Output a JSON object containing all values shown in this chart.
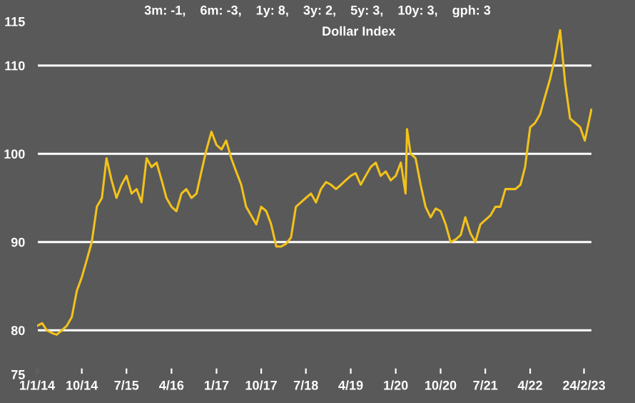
{
  "chart_data": {
    "type": "line",
    "title": "Dollar Index",
    "subtitle": "3m: -1,    6m: -3,    1y: 8,    3y: 2,    5y: 3,    10y: 3,    gph: 3",
    "x": [
      "2014-01",
      "2014-02",
      "2014-03",
      "2014-04",
      "2014-05",
      "2014-06",
      "2014-07",
      "2014-08",
      "2014-09",
      "2014-10",
      "2014-11",
      "2014-12",
      "2015-01",
      "2015-02",
      "2015-03",
      "2015-04",
      "2015-05",
      "2015-06",
      "2015-07",
      "2015-08",
      "2015-09",
      "2015-10",
      "2015-11",
      "2015-12",
      "2016-01",
      "2016-02",
      "2016-03",
      "2016-04",
      "2016-05",
      "2016-06",
      "2016-07",
      "2016-08",
      "2016-09",
      "2016-10",
      "2016-11",
      "2016-12",
      "2017-01",
      "2017-02",
      "2017-03",
      "2017-04",
      "2017-05",
      "2017-06",
      "2017-07",
      "2017-08",
      "2017-09",
      "2017-10",
      "2017-11",
      "2017-12",
      "2018-01",
      "2018-02",
      "2018-03",
      "2018-04",
      "2018-05",
      "2018-06",
      "2018-07",
      "2018-08",
      "2018-09",
      "2018-10",
      "2018-11",
      "2018-12",
      "2019-01",
      "2019-02",
      "2019-03",
      "2019-04",
      "2019-05",
      "2019-06",
      "2019-07",
      "2019-08",
      "2019-09",
      "2019-10",
      "2019-11",
      "2019-12",
      "2020-01",
      "2020-02",
      "2020-03",
      "2020-03-10",
      "2020-03-20",
      "2020-04",
      "2020-05",
      "2020-06",
      "2020-07",
      "2020-08",
      "2020-09",
      "2020-10",
      "2020-11",
      "2020-12",
      "2021-01",
      "2021-02",
      "2021-03",
      "2021-04",
      "2021-05",
      "2021-06",
      "2021-07",
      "2021-08",
      "2021-09",
      "2021-10",
      "2021-11",
      "2021-12",
      "2022-01",
      "2022-02",
      "2022-03",
      "2022-04",
      "2022-05",
      "2022-06",
      "2022-07",
      "2022-08",
      "2022-09",
      "2022-10",
      "2022-11",
      "2022-12",
      "2023-01",
      "2023-02",
      "2023-03",
      "2023-04-10"
    ],
    "series": [
      {
        "color": "#f2c21b",
        "values": [
          80.5,
          80.8,
          80,
          79.7,
          79.5,
          80,
          80.5,
          81.5,
          84.5,
          86,
          88,
          90,
          94,
          95,
          99.5,
          97,
          95,
          96.5,
          97.5,
          95.5,
          96,
          94.5,
          99.5,
          98.5,
          99,
          97,
          95,
          94,
          93.5,
          95.5,
          96,
          95,
          95.5,
          98,
          100.5,
          102.5,
          101,
          100.5,
          101.5,
          99.5,
          98,
          96.5,
          94,
          93,
          92,
          94,
          93.5,
          92,
          89.5,
          89.5,
          89.8,
          90.5,
          94,
          94.5,
          95,
          95.5,
          94.5,
          96,
          96.8,
          96.5,
          96,
          96.5,
          97,
          97.5,
          97.8,
          96.5,
          97.5,
          98.5,
          99,
          97.5,
          98,
          97,
          97.5,
          99,
          95.5,
          102.8,
          101.5,
          100,
          99.5,
          96.5,
          94,
          92.8,
          93.8,
          93.5,
          92,
          90,
          90.3,
          90.8,
          92.8,
          91,
          90,
          92,
          92.5,
          93,
          94,
          94,
          96,
          96,
          96,
          96.5,
          98.5,
          103,
          103.5,
          104.5,
          106.5,
          108.5,
          111,
          114,
          108,
          104,
          103.5,
          103,
          101.5,
          105
        ]
      }
    ],
    "xlim": [
      "2014-01-01",
      "2023-04-15"
    ],
    "xticks": [
      {
        "value": "2014-01-01",
        "label": "1/1/14"
      },
      {
        "value": "2014-10-01",
        "label": "10/14"
      },
      {
        "value": "2015-07-01",
        "label": "7/15"
      },
      {
        "value": "2016-04-01",
        "label": "4/16"
      },
      {
        "value": "2017-01-01",
        "label": "1/17"
      },
      {
        "value": "2017-10-01",
        "label": "10/17"
      },
      {
        "value": "2018-07-01",
        "label": "7/18"
      },
      {
        "value": "2019-04-01",
        "label": "4/19"
      },
      {
        "value": "2020-01-01",
        "label": "1/20"
      },
      {
        "value": "2020-10-01",
        "label": "10/20"
      },
      {
        "value": "2021-07-01",
        "label": "7/21"
      },
      {
        "value": "2022-04-01",
        "label": "4/22"
      },
      {
        "value": "2023-02-24",
        "label": "24/2/23"
      }
    ],
    "ylim": [
      75,
      115
    ],
    "yticks": [
      75,
      80,
      90,
      100,
      110,
      115
    ],
    "grid": "y",
    "marker": "none",
    "line_style": "solid"
  }
}
